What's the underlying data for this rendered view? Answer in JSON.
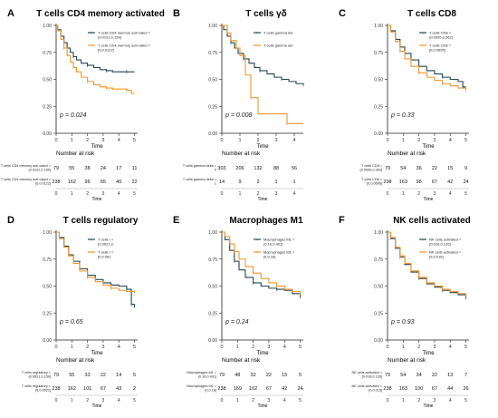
{
  "colors": {
    "dark": "#26464f",
    "orange": "#f0962e",
    "axis": "#222222"
  },
  "chart_data": [
    {
      "panel_letter": "A",
      "title": "T cells CD4 memory activated",
      "type": "line",
      "xlabel": "Time",
      "xticks": [
        0,
        1,
        2,
        3,
        4,
        5
      ],
      "yticks": [
        0.0,
        0.25,
        0.5,
        0.75,
        1.0
      ],
      "xlim": [
        0,
        5.2
      ],
      "ylim": [
        0,
        1
      ],
      "legend_position": "top-right",
      "pvalue": "p = 0.024",
      "risk_title": "Number at risk",
      "series": [
        {
          "name": "T cells CD4 memory acti-vated = (0.0122,0.159]",
          "color": "#26464f",
          "x": [
            0,
            0.1,
            0.3,
            0.5,
            0.7,
            0.9,
            1.1,
            1.3,
            1.6,
            2.0,
            2.4,
            2.8,
            3.2,
            3.6,
            4.0,
            4.5,
            5.0
          ],
          "y": [
            1.0,
            0.96,
            0.9,
            0.84,
            0.79,
            0.75,
            0.71,
            0.68,
            0.65,
            0.63,
            0.61,
            0.59,
            0.58,
            0.57,
            0.57,
            0.57,
            0.57
          ]
        },
        {
          "name": "T cells CD4 memory acti-vated = [0,0.0122]",
          "color": "#f0962e",
          "x": [
            0,
            0.1,
            0.3,
            0.5,
            0.7,
            0.9,
            1.1,
            1.3,
            1.6,
            2.0,
            2.4,
            2.8,
            3.2,
            3.6,
            4.0,
            4.5,
            4.8,
            5.0
          ],
          "y": [
            1.0,
            0.95,
            0.87,
            0.79,
            0.72,
            0.66,
            0.61,
            0.57,
            0.52,
            0.48,
            0.45,
            0.43,
            0.42,
            0.41,
            0.41,
            0.4,
            0.37,
            0.37
          ]
        }
      ],
      "risk_rows": [
        {
          "label": "T cells CD4 memory acti-vated = (0.0122,0.159]",
          "values": [
            79,
            55,
            38,
            24,
            17,
            11
          ]
        },
        {
          "label": "T cells CD4 memory acti-vated = [0,0.0122]",
          "values": [
            238,
            162,
            96,
            65,
            40,
            22
          ]
        }
      ]
    },
    {
      "panel_letter": "B",
      "title": "T cells γδ",
      "type": "line",
      "xlabel": "Time",
      "xticks": [
        0,
        1,
        2,
        3,
        4
      ],
      "yticks": [
        0.0,
        0.25,
        0.5,
        0.75,
        1.0
      ],
      "xlim": [
        0,
        4.5
      ],
      "ylim": [
        0,
        1
      ],
      "legend_position": "top-right",
      "pvalue": "p = 0.008",
      "risk_title": "Number at risk",
      "series": [
        {
          "name": "T cells gamma del",
          "color": "#26464f",
          "x": [
            0,
            0.1,
            0.3,
            0.5,
            0.7,
            0.9,
            1.2,
            1.5,
            1.8,
            2.1,
            2.5,
            2.9,
            3.3,
            3.7,
            4.1,
            4.5
          ],
          "y": [
            1.0,
            0.96,
            0.9,
            0.84,
            0.79,
            0.74,
            0.69,
            0.65,
            0.61,
            0.58,
            0.55,
            0.52,
            0.5,
            0.48,
            0.46,
            0.45
          ]
        },
        {
          "name": "T cells gamma del",
          "color": "#f0962e",
          "x": [
            0,
            0.3,
            0.5,
            0.8,
            1.0,
            1.3,
            1.6,
            2.0,
            2.8,
            3.6,
            4.5
          ],
          "y": [
            1.0,
            0.93,
            0.86,
            0.79,
            0.72,
            0.54,
            0.33,
            0.18,
            0.18,
            0.09,
            0.09
          ]
        }
      ],
      "risk_rows": [
        {
          "label": "T cells gamma delta = 0",
          "values": [
            303,
            206,
            132,
            88,
            56
          ]
        },
        {
          "label": "T cells gamma delta = 1",
          "values": [
            14,
            9,
            2,
            1,
            1
          ]
        }
      ]
    },
    {
      "panel_letter": "C",
      "title": "T cells CD8",
      "type": "line",
      "xlabel": "Time",
      "xticks": [
        0,
        1,
        2,
        3,
        4,
        5
      ],
      "yticks": [
        0.0,
        0.25,
        0.5,
        0.75,
        1.0
      ],
      "xlim": [
        0,
        5.2
      ],
      "ylim": [
        0,
        1
      ],
      "legend_position": "top-right",
      "pvalue": "p = 0.33",
      "risk_title": "Number at risk",
      "series": [
        {
          "name": "T cells CD8 = (0.0695,0.362]",
          "color": "#26464f",
          "x": [
            0,
            0.2,
            0.5,
            0.8,
            1.1,
            1.5,
            2.0,
            2.5,
            3.0,
            3.5,
            4.0,
            4.5,
            4.8,
            5.0
          ],
          "y": [
            1.0,
            0.95,
            0.87,
            0.8,
            0.74,
            0.68,
            0.62,
            0.58,
            0.55,
            0.52,
            0.5,
            0.48,
            0.43,
            0.43
          ]
        },
        {
          "name": "T cells CD8 = [0,0.0695]",
          "color": "#f0962e",
          "x": [
            0,
            0.2,
            0.5,
            0.8,
            1.1,
            1.5,
            2.0,
            2.5,
            3.0,
            3.5,
            4.0,
            4.5,
            5.0
          ],
          "y": [
            1.0,
            0.94,
            0.85,
            0.76,
            0.69,
            0.62,
            0.56,
            0.52,
            0.49,
            0.46,
            0.44,
            0.42,
            0.4
          ]
        }
      ],
      "risk_rows": [
        {
          "label": "T cells CD8 = (0.0695,0.362]",
          "values": [
            79,
            54,
            36,
            22,
            15,
            9
          ]
        },
        {
          "label": "T cells CD8 = [0,0.0695]",
          "values": [
            238,
            163,
            98,
            67,
            42,
            24
          ]
        }
      ]
    },
    {
      "panel_letter": "D",
      "title": "T cells regulatory",
      "type": "line",
      "xlabel": "Time",
      "xticks": [
        0,
        1,
        2,
        3,
        4,
        5
      ],
      "yticks": [
        0.0,
        0.25,
        0.5,
        0.75,
        1.0
      ],
      "xlim": [
        0,
        5.2
      ],
      "ylim": [
        0,
        1
      ],
      "legend_position": "top-right",
      "pvalue": "p = 0.65",
      "risk_title": "Number at risk",
      "series": [
        {
          "name": "T cells r = (0.0621,0.",
          "color": "#26464f",
          "x": [
            0,
            0.2,
            0.5,
            0.8,
            1.1,
            1.5,
            2.0,
            2.5,
            3.0,
            3.5,
            4.0,
            4.5,
            4.8,
            5.0
          ],
          "y": [
            1.0,
            0.95,
            0.87,
            0.79,
            0.73,
            0.66,
            0.6,
            0.56,
            0.53,
            0.51,
            0.5,
            0.47,
            0.33,
            0.3
          ]
        },
        {
          "name": "T cells r = [0,0.062",
          "color": "#f0962e",
          "x": [
            0,
            0.2,
            0.5,
            0.8,
            1.1,
            1.5,
            2.0,
            2.5,
            3.0,
            3.5,
            4.0,
            4.5,
            5.0
          ],
          "y": [
            1.0,
            0.94,
            0.86,
            0.78,
            0.71,
            0.64,
            0.58,
            0.54,
            0.51,
            0.48,
            0.46,
            0.45,
            0.44
          ]
        }
      ],
      "risk_rows": [
        {
          "label": "T cells regulatory = (0.0621,0.159]",
          "values": [
            79,
            55,
            33,
            22,
            14,
            5
          ]
        },
        {
          "label": "T cells regulatory = [0,0.0621]",
          "values": [
            238,
            162,
            101,
            67,
            43,
            2
          ]
        }
      ]
    },
    {
      "panel_letter": "E",
      "title": "Macrophages M1",
      "type": "line",
      "xlabel": "Time",
      "xticks": [
        0,
        1,
        2,
        3,
        4,
        5
      ],
      "yticks": [
        0.0,
        0.25,
        0.5,
        0.75,
        1.0
      ],
      "xlim": [
        0,
        5.2
      ],
      "ylim": [
        0,
        1
      ],
      "legend_position": "top-right",
      "pvalue": "p = 0.24",
      "risk_title": "Number at risk",
      "series": [
        {
          "name": "Macrophages M1 = (0.16,0.401]",
          "color": "#26464f",
          "x": [
            0,
            0.2,
            0.5,
            0.8,
            1.1,
            1.5,
            2.0,
            2.5,
            3.0,
            3.5,
            4.0,
            4.5,
            5.0
          ],
          "y": [
            1.0,
            0.93,
            0.83,
            0.73,
            0.65,
            0.58,
            0.53,
            0.5,
            0.48,
            0.47,
            0.46,
            0.43,
            0.4
          ]
        },
        {
          "name": "Macrophages M1 = [0,0.16]",
          "color": "#f0962e",
          "x": [
            0,
            0.2,
            0.5,
            0.8,
            1.1,
            1.5,
            2.0,
            2.5,
            3.0,
            3.5,
            4.0,
            4.5,
            5.0
          ],
          "y": [
            1.0,
            0.96,
            0.89,
            0.82,
            0.75,
            0.68,
            0.62,
            0.57,
            0.53,
            0.5,
            0.47,
            0.45,
            0.43
          ]
        }
      ],
      "risk_rows": [
        {
          "label": "Macrophages M1 = (0.16,0.401]",
          "values": [
            79,
            48,
            32,
            22,
            15,
            5
          ]
        },
        {
          "label": "Macrophages M1 = [0,0.16]",
          "values": [
            238,
            169,
            102,
            67,
            42,
            24
          ]
        }
      ]
    },
    {
      "panel_letter": "F",
      "title": "NK cells activated",
      "type": "line",
      "xlabel": "Time",
      "xticks": [
        0,
        1,
        2,
        3,
        4,
        5
      ],
      "yticks": [
        0.0,
        0.25,
        0.5,
        0.75,
        1.0
      ],
      "xlim": [
        0,
        5.2
      ],
      "ylim": [
        0,
        1
      ],
      "legend_position": "top-right",
      "pvalue": "p = 0.93",
      "risk_title": "Number at risk",
      "series": [
        {
          "name": "NK cells activated = (0.016,0.126]",
          "color": "#26464f",
          "x": [
            0,
            0.2,
            0.5,
            0.8,
            1.1,
            1.5,
            2.0,
            2.5,
            3.0,
            3.5,
            4.0,
            4.5,
            5.0
          ],
          "y": [
            1.0,
            0.94,
            0.85,
            0.77,
            0.7,
            0.63,
            0.57,
            0.52,
            0.49,
            0.46,
            0.44,
            0.42,
            0.39
          ]
        },
        {
          "name": "NK cells activated = [0,0.016]",
          "color": "#f0962e",
          "x": [
            0,
            0.2,
            0.5,
            0.8,
            1.1,
            1.5,
            2.0,
            2.5,
            3.0,
            3.5,
            4.0,
            4.5,
            5.0
          ],
          "y": [
            1.0,
            0.95,
            0.86,
            0.78,
            0.71,
            0.64,
            0.58,
            0.53,
            0.5,
            0.47,
            0.45,
            0.43,
            0.41
          ]
        }
      ],
      "risk_rows": [
        {
          "label": "NK cells activated = (0.016,0.126]",
          "values": [
            79,
            54,
            34,
            22,
            13,
            7
          ]
        },
        {
          "label": "NK cells activated = [0,0.016]",
          "values": [
            238,
            163,
            100,
            67,
            44,
            26
          ]
        }
      ]
    }
  ]
}
